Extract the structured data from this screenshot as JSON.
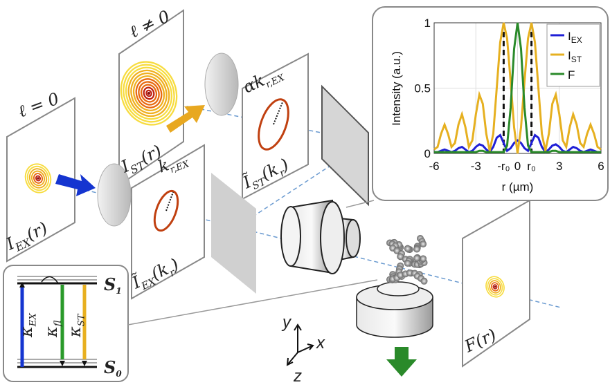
{
  "labels": {
    "l0": "ℓ = 0",
    "lne": "ℓ ≠ 0",
    "iex": [
      "I",
      "EX",
      "(r)"
    ],
    "ist": [
      "I",
      "ST",
      "(r)"
    ],
    "krex": [
      "k",
      "r,EX"
    ],
    "akrex": [
      "αk",
      "r,EX"
    ],
    "tiex": [
      "Ĩ",
      "EX",
      "(k",
      "r",
      ")"
    ],
    "tist": [
      "Ĩ",
      "ST",
      "(k",
      "r",
      ")"
    ],
    "fr": "F(r)",
    "s1": [
      "S",
      "1"
    ],
    "s0": [
      "S",
      "0"
    ],
    "kex": [
      "κ",
      "EX"
    ],
    "kfl": [
      "κ",
      "fl"
    ],
    "kst": [
      "κ",
      "ST"
    ],
    "ax_y": "y",
    "ax_x": "x",
    "ax_z": "z"
  },
  "chart_data": {
    "type": "line",
    "ylabel": "Intensity (a.u.)",
    "xlabel": "r (µm)",
    "xlim": [
      -6,
      6
    ],
    "ylim": [
      0,
      1
    ],
    "grid": true,
    "legend": "upper right",
    "xticks": [
      -6,
      -3,
      {
        "value": -1,
        "label": "-r₀"
      },
      0,
      {
        "value": 1,
        "label": "r₀"
      },
      3,
      6
    ],
    "yticks": [
      0,
      0.5,
      1
    ],
    "x": [
      -6,
      -5.75,
      -5.5,
      -5.25,
      -5,
      -4.75,
      -4.5,
      -4.25,
      -4,
      -3.75,
      -3.5,
      -3.25,
      -3,
      -2.75,
      -2.5,
      -2.25,
      -2,
      -1.75,
      -1.5,
      -1.25,
      -1,
      -0.75,
      -0.5,
      -0.25,
      0,
      0.25,
      0.5,
      0.75,
      1,
      1.25,
      1.5,
      1.75,
      2,
      2.25,
      2.5,
      2.75,
      3,
      3.25,
      3.5,
      3.75,
      4,
      4.25,
      4.5,
      4.75,
      5,
      5.25,
      5.5,
      5.75,
      6
    ],
    "series": [
      {
        "name": "I",
        "subscript": "EX",
        "color": "#1f1fd6",
        "values": [
          0.01,
          0.01,
          0.02,
          0.03,
          0.02,
          0.01,
          0.02,
          0.04,
          0.05,
          0.03,
          0.01,
          0.02,
          0.05,
          0.07,
          0.06,
          0.03,
          0.01,
          0.05,
          0.12,
          0.14,
          0.08,
          0.02,
          0.04,
          0.08,
          0.1,
          0.08,
          0.04,
          0.02,
          0.08,
          0.14,
          0.12,
          0.05,
          0.01,
          0.03,
          0.06,
          0.07,
          0.05,
          0.02,
          0.01,
          0.03,
          0.05,
          0.04,
          0.02,
          0.01,
          0.02,
          0.03,
          0.02,
          0.01,
          0.01
        ]
      },
      {
        "name": "I",
        "subscript": "ST",
        "color": "#e6b020",
        "values": [
          0.03,
          0.05,
          0.15,
          0.22,
          0.15,
          0.05,
          0.08,
          0.22,
          0.3,
          0.2,
          0.05,
          0.1,
          0.3,
          0.45,
          0.38,
          0.15,
          0.02,
          0.15,
          0.5,
          0.85,
          1,
          0.88,
          0.55,
          0.2,
          0,
          0.2,
          0.55,
          0.88,
          1,
          0.85,
          0.5,
          0.15,
          0.02,
          0.15,
          0.38,
          0.45,
          0.3,
          0.1,
          0.05,
          0.2,
          0.3,
          0.22,
          0.08,
          0.05,
          0.15,
          0.22,
          0.15,
          0.05,
          0.03
        ]
      },
      {
        "name": "F",
        "color": "#2a8a2a",
        "values": [
          0.01,
          0.01,
          0.01,
          0.01,
          0.01,
          0.01,
          0.01,
          0.01,
          0.01,
          0.01,
          0.01,
          0.01,
          0.01,
          0.02,
          0.02,
          0.01,
          0.01,
          0.01,
          0.01,
          0.01,
          0.01,
          0.06,
          0.35,
          0.8,
          1,
          0.8,
          0.35,
          0.06,
          0.01,
          0.01,
          0.01,
          0.01,
          0.01,
          0.01,
          0.02,
          0.02,
          0.01,
          0.01,
          0.01,
          0.01,
          0.01,
          0.01,
          0.01,
          0.01,
          0.01,
          0.01,
          0.01,
          0.01,
          0.01
        ]
      }
    ]
  }
}
